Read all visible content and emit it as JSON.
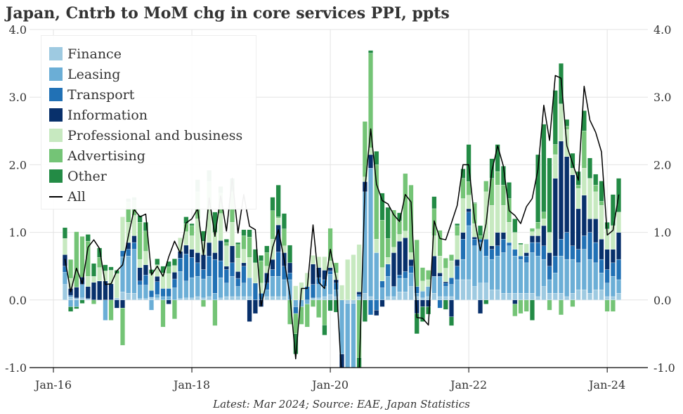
{
  "title": "Japan, Cntrb to MoM chg in core services PPI, ppts",
  "source": "Latest: Mar 2024; Source: EAE, Japan Statistics",
  "chart_data": {
    "type": "bar",
    "stacked": true,
    "title": "Japan, Cntrb to MoM chg in core services PPI, ppts",
    "ylim": [
      -1,
      4
    ],
    "y_ticks": [
      "-1.0",
      "0.0",
      "1.0",
      "2.0",
      "3.0",
      "4.0"
    ],
    "y_tick_values": [
      -1,
      0,
      1,
      2,
      3,
      4
    ],
    "x_ticks": [
      "Jan-16",
      "Jan-18",
      "Jan-20",
      "Jan-22",
      "Jan-24"
    ],
    "x_tick_dates": [
      "2016-01",
      "2018-01",
      "2020-01",
      "2022-01",
      "2024-01"
    ],
    "grid": true,
    "legend_position": "top-left",
    "dual_y_axis": true,
    "x": [
      "2016-03",
      "2016-04",
      "2016-05",
      "2016-06",
      "2016-07",
      "2016-08",
      "2016-09",
      "2016-10",
      "2016-11",
      "2016-12",
      "2017-01",
      "2017-02",
      "2017-03",
      "2017-04",
      "2017-05",
      "2017-06",
      "2017-07",
      "2017-08",
      "2017-09",
      "2017-10",
      "2017-11",
      "2017-12",
      "2018-01",
      "2018-02",
      "2018-03",
      "2018-04",
      "2018-05",
      "2018-06",
      "2018-07",
      "2018-08",
      "2018-09",
      "2018-10",
      "2018-11",
      "2018-12",
      "2019-01",
      "2019-02",
      "2019-03",
      "2019-04",
      "2019-05",
      "2019-06",
      "2019-07",
      "2019-08",
      "2019-09",
      "2019-10",
      "2019-11",
      "2019-12",
      "2020-01",
      "2020-02",
      "2020-03",
      "2020-04",
      "2020-05",
      "2020-06",
      "2020-07",
      "2020-08",
      "2020-09",
      "2020-10",
      "2020-11",
      "2020-12",
      "2021-01",
      "2021-02",
      "2021-03",
      "2021-04",
      "2021-05",
      "2021-06",
      "2021-07",
      "2021-08",
      "2021-09",
      "2021-10",
      "2021-11",
      "2021-12",
      "2022-01",
      "2022-02",
      "2022-03",
      "2022-04",
      "2022-05",
      "2022-06",
      "2022-07",
      "2022-08",
      "2022-09",
      "2022-10",
      "2022-11",
      "2022-12",
      "2023-01",
      "2023-02",
      "2023-03",
      "2023-04",
      "2023-05",
      "2023-06",
      "2023-07",
      "2023-08",
      "2023-09",
      "2023-10",
      "2023-11",
      "2023-12",
      "2024-01",
      "2024-02",
      "2024-03"
    ],
    "series": [
      {
        "name": "Finance",
        "color": "#9ecae1",
        "kind": "bar",
        "values": [
          0.23,
          0.05,
          0.02,
          0.03,
          0.02,
          0,
          0,
          0,
          0,
          0.03,
          0.12,
          0.1,
          0.1,
          0.02,
          0.02,
          0.04,
          0.03,
          0,
          0,
          0,
          0.02,
          0.03,
          0.03,
          0.05,
          0.03,
          0.05,
          0,
          0.03,
          0.05,
          0.05,
          0.05,
          0.05,
          0.05,
          0,
          0,
          0.05,
          0.05,
          0.05,
          0.05,
          0,
          0,
          0,
          0,
          0.03,
          0.03,
          0.05,
          0.08,
          0.05,
          0,
          -0.05,
          -0.05,
          0.05,
          0.1,
          0.05,
          0,
          0,
          0.05,
          0.05,
          0.12,
          0.12,
          0.2,
          0.05,
          0.03,
          0.05,
          0.1,
          0.05,
          0.05,
          0.05,
          0,
          0.3,
          0.3,
          0.2,
          0.25,
          0.25,
          0.15,
          0.15,
          0.1,
          0.1,
          0.1,
          0.1,
          0.1,
          0.1,
          0.05,
          0.2,
          0.1,
          0.1,
          0.1,
          0.05,
          0.1,
          0.15,
          0.15,
          0.1,
          0.15,
          0.15,
          0.05,
          0.05,
          0.1
        ]
      },
      {
        "name": "Leasing",
        "color": "#6baed6",
        "kind": "bar",
        "values": [
          0.18,
          -0.1,
          -0.1,
          0.2,
          0,
          0,
          0,
          -0.3,
          0,
          0,
          0.52,
          0.55,
          0.65,
          0.2,
          0.2,
          -0.15,
          0.05,
          0.05,
          0.05,
          0.18,
          0.4,
          0.25,
          0.3,
          0.3,
          0.28,
          0.3,
          0.1,
          0.3,
          0.2,
          0.3,
          0.15,
          0.2,
          0.28,
          0,
          0,
          0.1,
          0.3,
          0.3,
          0.25,
          0.3,
          -0.1,
          -0.1,
          -0.06,
          0,
          0.2,
          0.15,
          0.3,
          0.1,
          -0.8,
          -1.1,
          -1.2,
          0,
          1.5,
          1.9,
          0.7,
          0.18,
          0.3,
          0.15,
          0.2,
          0.2,
          0.2,
          0.05,
          0.1,
          0.15,
          0.25,
          0.3,
          0.15,
          0.18,
          0.3,
          0.3,
          0.8,
          0.6,
          0.6,
          0.4,
          0.45,
          0.5,
          0.6,
          0.7,
          0.55,
          0.5,
          0.45,
          0.6,
          0.6,
          0.4,
          0.2,
          0.3,
          0.55,
          0.55,
          0.5,
          0.4,
          0.6,
          0.5,
          0.4,
          0.25,
          0.2,
          0.3,
          0.2
        ]
      },
      {
        "name": "Transport",
        "color": "#2171b5",
        "kind": "bar",
        "values": [
          0.09,
          0.02,
          0.01,
          0,
          0,
          0,
          0,
          0,
          0,
          0,
          0.09,
          0.1,
          0.1,
          0.06,
          0.15,
          0.1,
          0.19,
          0.12,
          0.12,
          0.13,
          0.2,
          0.4,
          0.3,
          0.2,
          0.14,
          0.3,
          0.5,
          0.25,
          0.2,
          0.2,
          0.12,
          0.25,
          0,
          0.25,
          0.1,
          0.1,
          0.1,
          0.36,
          0.2,
          0.1,
          -0.1,
          0,
          0.2,
          0.2,
          0.1,
          0.1,
          0.05,
          0.1,
          0,
          0,
          0,
          0.03,
          0,
          -0.22,
          -0.15,
          0.1,
          0.18,
          0,
          0.05,
          0.1,
          0.1,
          0.1,
          0,
          0,
          0,
          -0.12,
          0.05,
          0.1,
          0.2,
          0.3,
          0.2,
          0.1,
          0.05,
          0.25,
          0.15,
          0.15,
          0.2,
          0.05,
          0.1,
          0.05,
          0.1,
          0.15,
          0.2,
          0.2,
          0.2,
          0.25,
          0.25,
          0.4,
          0.2,
          0.2,
          0.2,
          0.4,
          0.3,
          0.2,
          0.2,
          0.2,
          0.3
        ]
      },
      {
        "name": "Information",
        "color": "#08306b",
        "kind": "bar",
        "values": [
          0.17,
          0.1,
          0.16,
          0.11,
          0.18,
          0.26,
          0.28,
          0.28,
          0.24,
          -0.12,
          -0.12,
          0.1,
          0.1,
          0.2,
          0.15,
          0,
          0.08,
          0,
          -0.06,
          0.1,
          0.1,
          0.13,
          0.12,
          0.15,
          0.22,
          0.2,
          0.1,
          0.3,
          0.05,
          0.25,
          0.1,
          0.05,
          -0.32,
          -0.2,
          -0.1,
          0.15,
          0.15,
          0.4,
          0.2,
          0.15,
          0,
          0,
          0,
          0.3,
          0.15,
          0.14,
          0.05,
          0.05,
          -0.2,
          0,
          0,
          0.04,
          0.15,
          0.2,
          -0.08,
          -0.1,
          0,
          0.5,
          0.5,
          0.5,
          0.1,
          -0.2,
          -0.1,
          -0.1,
          0.3,
          0.05,
          0.02,
          -0.25,
          0.1,
          0.1,
          0.05,
          0.03,
          -0.2,
          0,
          0.05,
          0.2,
          0.1,
          0,
          -0.06,
          0,
          0.05,
          0.1,
          0.1,
          0.3,
          0.2,
          1.15,
          1.45,
          1.12,
          1.05,
          0.6,
          0.6,
          0.2,
          0.35,
          0.3,
          0.3,
          0.2,
          0.4
        ]
      },
      {
        "name": "Professional and business",
        "color": "#c7e9c0",
        "kind": "bar",
        "values": [
          0.24,
          0.15,
          0,
          0,
          0.15,
          0.09,
          0.2,
          0.15,
          0.2,
          0.36,
          0.5,
          0.3,
          0.3,
          0.12,
          0.2,
          0.25,
          0.17,
          0.23,
          0.22,
          0.1,
          0.2,
          0.2,
          0.2,
          0.5,
          0.2,
          0.5,
          0.3,
          0.4,
          0.3,
          0.35,
          0.2,
          0.2,
          0.3,
          0.3,
          0.15,
          0.1,
          0.3,
          0.1,
          0.1,
          0,
          0.21,
          0.26,
          0.2,
          0.13,
          0.16,
          0.2,
          0.1,
          0.1,
          0.22,
          0.6,
          0.67,
          0.7,
          0.07,
          0.1,
          0.2,
          0.2,
          0.1,
          0.08,
          0.1,
          0.1,
          0.1,
          0,
          0.15,
          0.1,
          0.3,
          0.25,
          0.2,
          0.25,
          0.35,
          0.5,
          0.2,
          0.2,
          0,
          0.7,
          0.6,
          0.7,
          0.4,
          0.3,
          0.25,
          0.17,
          0.13,
          0.06,
          0.1,
          0.1,
          0.3,
          0.35,
          0.55,
          0.4,
          0.1,
          0.3,
          0.4,
          0.6,
          0.4,
          0.5,
          0.3,
          0.35,
          0.3
        ]
      },
      {
        "name": "Advertising",
        "color": "#74c476",
        "kind": "bar",
        "values": [
          0,
          0.28,
          0.82,
          0.6,
          0.52,
          -0.06,
          0.15,
          0,
          -0.3,
          0,
          -0.55,
          0.3,
          0.22,
          0.55,
          0.3,
          0,
          0,
          -0.4,
          0.1,
          -0.28,
          0,
          0.12,
          0.15,
          0.4,
          -0.1,
          0.4,
          -0.38,
          0.3,
          0.05,
          0.45,
          0.2,
          0.2,
          0.3,
          0,
          0.33,
          0.2,
          0.42,
          0.02,
          0.25,
          -0.36,
          -0.3,
          -0.26,
          -0.34,
          -0.1,
          -0.26,
          -0.37,
          0.48,
          0.15,
          -0.2,
          0,
          0,
          -0.85,
          0.82,
          1.4,
          1.1,
          0.7,
          0.28,
          0.55,
          0.2,
          0.85,
          1.0,
          0.69,
          0.2,
          0.14,
          0.4,
          0.38,
          0.15,
          0.09,
          0.15,
          0.3,
          0.2,
          0.3,
          0.05,
          0.16,
          0.4,
          0.2,
          0.3,
          0.35,
          -0.18,
          -0.2,
          -0.17,
          0.05,
          0.1,
          0.1,
          -0.15,
          0.15,
          -0.22,
          0.05,
          -0.1,
          0.05,
          0.55,
          0,
          0.1,
          0.06,
          -0.17,
          -0.17,
          0
        ]
      },
      {
        "name": "Other",
        "color": "#238b45",
        "kind": "bar",
        "values": [
          0.16,
          -0.07,
          -0.03,
          -0.05,
          0.1,
          0.19,
          0.14,
          0.09,
          0.05,
          0.05,
          0,
          0.05,
          0.05,
          0.1,
          0.13,
          0.06,
          0.09,
          0.1,
          0.08,
          0.1,
          0,
          0.1,
          0.03,
          0.18,
          0.15,
          0.17,
          0.3,
          0.1,
          0.05,
          0.2,
          0.03,
          0.09,
          0.11,
          0.2,
          0.08,
          0.1,
          0.2,
          0.47,
          0.23,
          0.26,
          -0.3,
          0,
          0,
          0,
          0,
          -0.15,
          -0.16,
          -0.18,
          0,
          0,
          0,
          -0.2,
          -0.32,
          0.04,
          0.2,
          0.4,
          0.46,
          0,
          0.12,
          0,
          0,
          -0.3,
          -0.22,
          -0.11,
          0.18,
          0,
          -0.14,
          -0.13,
          0.03,
          0.14,
          0.55,
          0.01,
          0.15,
          -0.06,
          0.29,
          0.4,
          0.28,
          0.24,
          0.2,
          0.02,
          0,
          -0.3,
          1.0,
          1.3,
          1.1,
          0.8,
          0.6,
          0.1,
          0.22,
          0.2,
          0.3,
          0.3,
          0.16,
          0.3,
          0.1,
          0.46,
          0.5
        ]
      },
      {
        "name": "All",
        "color": "#000000",
        "kind": "line",
        "values": [
          0.61,
          0.12,
          0.47,
          0.24,
          0.78,
          0.89,
          0.76,
          0.23,
          0.24,
          0.43,
          0.52,
          0.95,
          1.34,
          1.23,
          1.27,
          0.37,
          0.5,
          0.35,
          0.64,
          0.87,
          0.69,
          1.14,
          1.2,
          1.35,
          0.66,
          1.51,
          0.94,
          1.54,
          1.02,
          1.8,
          0.99,
          1.56,
          1.09,
          1.04,
          -0.09,
          0.29,
          0.78,
          1.04,
          0.6,
          0.07,
          -0.87,
          0.17,
          0.17,
          1.11,
          0.26,
          0.17,
          0.75,
          0.33,
          -1.2,
          -1.2,
          -1.2,
          -1.1,
          1.64,
          2.53,
          1.71,
          1.47,
          1.42,
          1.26,
          1.16,
          1.56,
          1.45,
          -0.26,
          -0.27,
          -0.37,
          1.17,
          0.91,
          0.89,
          1.14,
          1.4,
          2.0,
          2.0,
          1.2,
          0.73,
          1.13,
          1.91,
          2.28,
          1.98,
          1.32,
          1.25,
          1.13,
          1.38,
          1.5,
          1.93,
          2.88,
          2.36,
          3.32,
          3.28,
          2.28,
          2.02,
          1.77,
          3.16,
          2.66,
          2.48,
          2.19,
          0.96,
          1.03,
          1.56
        ]
      }
    ]
  }
}
